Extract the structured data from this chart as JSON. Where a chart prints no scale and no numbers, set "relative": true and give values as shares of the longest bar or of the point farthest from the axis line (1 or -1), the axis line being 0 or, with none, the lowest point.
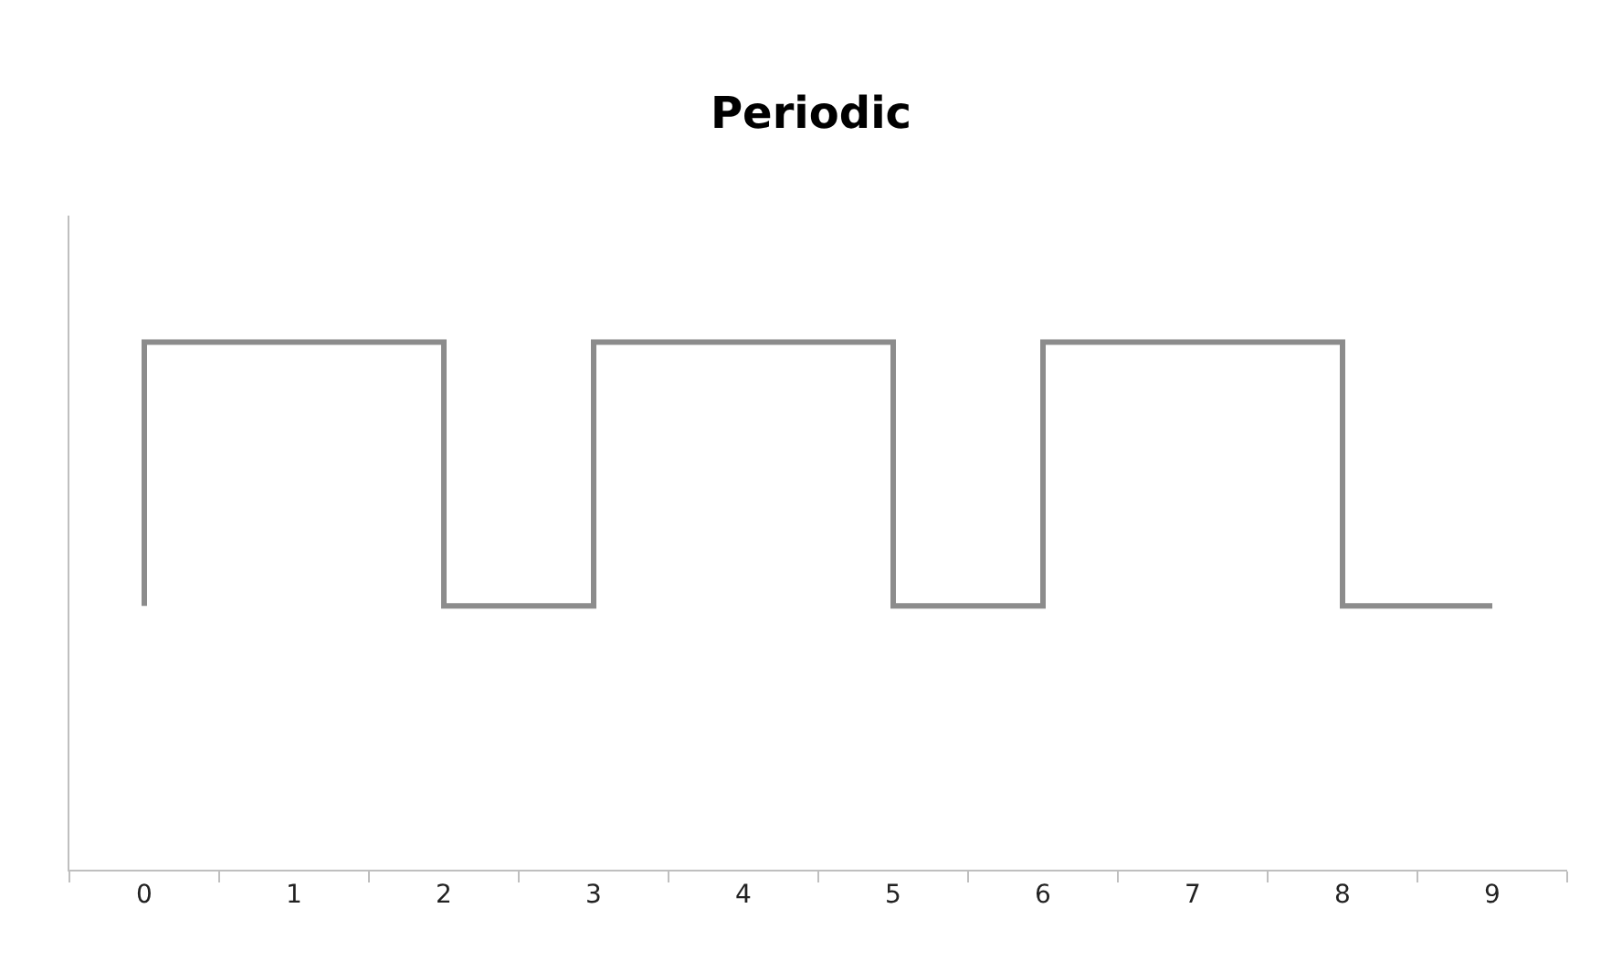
{
  "chart_data": {
    "type": "line",
    "title": "Periodic",
    "relative": true,
    "x": [
      0,
      0,
      2,
      2,
      3,
      3,
      5,
      5,
      6,
      6,
      8,
      8,
      9
    ],
    "series": [
      {
        "color": "#8c8c8c",
        "values": [
          0.5,
          1,
          1,
          0.5,
          0.5,
          1,
          1,
          0.5,
          0.5,
          1,
          1,
          0.5,
          0.5
        ]
      }
    ],
    "xlim": [
      -0.5,
      9.5
    ],
    "xticks": [
      0,
      1,
      2,
      3,
      4,
      5,
      6,
      7,
      8,
      9
    ],
    "grid": false,
    "tick_labels": "x",
    "marker": "none",
    "line_style": "solid"
  }
}
